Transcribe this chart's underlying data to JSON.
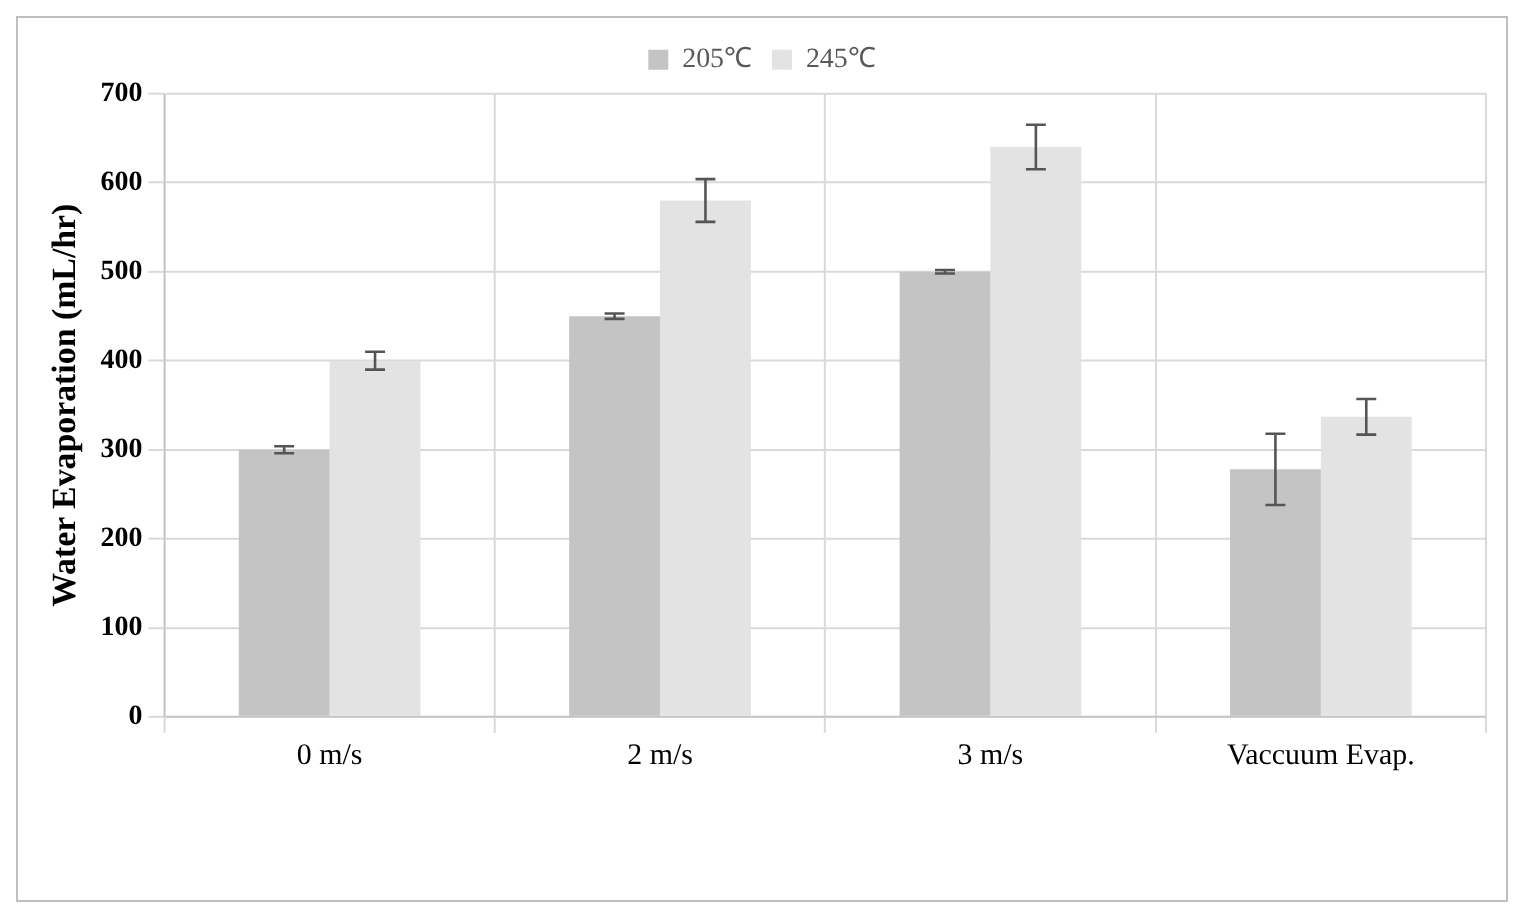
{
  "chart_data": {
    "type": "bar",
    "categories": [
      "0 m/s",
      "2 m/s",
      "3 m/s",
      "Vaccuum Evap."
    ],
    "ylabel": "Water Evaporation (mL/hr)",
    "ylim": [
      0,
      700
    ],
    "yticks": [
      0,
      100,
      200,
      300,
      400,
      500,
      600,
      700
    ],
    "grid": true,
    "legend": "top",
    "series": [
      {
        "name": "205℃",
        "color": "#c4c4c4",
        "values": [
          300,
          450,
          500,
          278
        ],
        "errors": [
          4,
          3,
          2,
          40
        ]
      },
      {
        "name": "245℃",
        "color": "#e3e3e3",
        "values": [
          400,
          580,
          640,
          337
        ],
        "errors": [
          10,
          24,
          25,
          20
        ]
      }
    ]
  }
}
